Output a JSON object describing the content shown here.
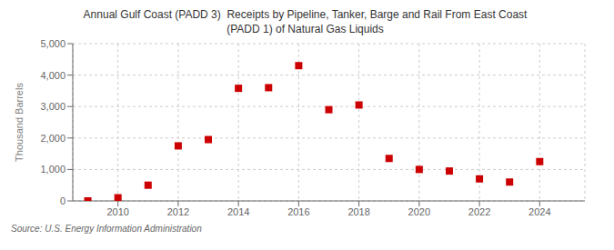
{
  "chart_data": {
    "type": "scatter",
    "title": "Annual Gulf Coast (PADD 3)  Receipts by Pipeline, Tanker, Barge and Rail From East Coast\n(PADD 1) of Natural Gas Liquids",
    "y_label": "Thousand Barrels",
    "annotations": [
      "Source: U.S. Energy Information Administration"
    ],
    "x": [
      2009,
      2010,
      2011,
      2012,
      2013,
      2014,
      2015,
      2016,
      2017,
      2018,
      2019,
      2020,
      2021,
      2022,
      2023,
      2024
    ],
    "values": [
      0,
      100,
      500,
      1750,
      1950,
      3580,
      3600,
      4300,
      2900,
      3050,
      1350,
      1000,
      950,
      700,
      600,
      1250
    ],
    "color": "#cc0000",
    "marker": "square",
    "xlim": [
      2008.5,
      2025.5
    ],
    "xticks": [
      2010,
      2012,
      2014,
      2016,
      2018,
      2020,
      2022,
      2024
    ],
    "ylim": [
      0,
      5000
    ],
    "yticks": [
      0,
      {
        "value": 1000,
        "label": "1,000"
      },
      {
        "value": 2000,
        "label": "2,000"
      },
      {
        "value": 3000,
        "label": "3,000"
      },
      {
        "value": 4000,
        "label": "4,000"
      },
      {
        "value": 5000,
        "label": "5,000"
      }
    ],
    "grid": true
  }
}
